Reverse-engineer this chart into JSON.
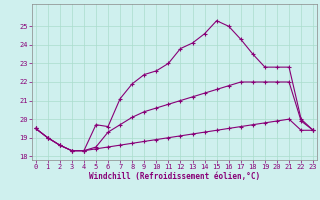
{
  "xlabel": "Windchill (Refroidissement éolien,°C)",
  "background_color": "#cff0ee",
  "grid_color": "#aaddcc",
  "line_color": "#880077",
  "x": [
    0,
    1,
    2,
    3,
    4,
    5,
    6,
    7,
    8,
    9,
    10,
    11,
    12,
    13,
    14,
    15,
    16,
    17,
    18,
    19,
    20,
    21,
    22,
    23
  ],
  "line1": [
    19.5,
    19.0,
    18.6,
    18.3,
    18.3,
    18.4,
    18.5,
    18.6,
    18.7,
    18.8,
    18.9,
    19.0,
    19.1,
    19.2,
    19.3,
    19.4,
    19.5,
    19.6,
    19.7,
    19.8,
    19.9,
    20.0,
    19.4,
    19.4
  ],
  "line2": [
    19.5,
    19.0,
    18.6,
    18.3,
    18.3,
    18.5,
    19.3,
    19.7,
    20.1,
    20.4,
    20.6,
    20.8,
    21.0,
    21.2,
    21.4,
    21.6,
    21.8,
    22.0,
    22.0,
    22.0,
    22.0,
    22.0,
    19.9,
    19.4
  ],
  "line3": [
    19.5,
    19.0,
    18.6,
    18.3,
    18.3,
    19.7,
    19.6,
    21.1,
    21.9,
    22.4,
    22.6,
    23.0,
    23.8,
    24.1,
    24.6,
    25.3,
    25.0,
    24.3,
    23.5,
    22.8,
    22.8,
    22.8,
    20.0,
    19.4
  ],
  "ylim": [
    17.8,
    26.2
  ],
  "xlim": [
    -0.3,
    23.3
  ],
  "yticks": [
    18,
    19,
    20,
    21,
    22,
    23,
    24,
    25
  ],
  "xticks": [
    0,
    1,
    2,
    3,
    4,
    5,
    6,
    7,
    8,
    9,
    10,
    11,
    12,
    13,
    14,
    15,
    16,
    17,
    18,
    19,
    20,
    21,
    22,
    23
  ]
}
